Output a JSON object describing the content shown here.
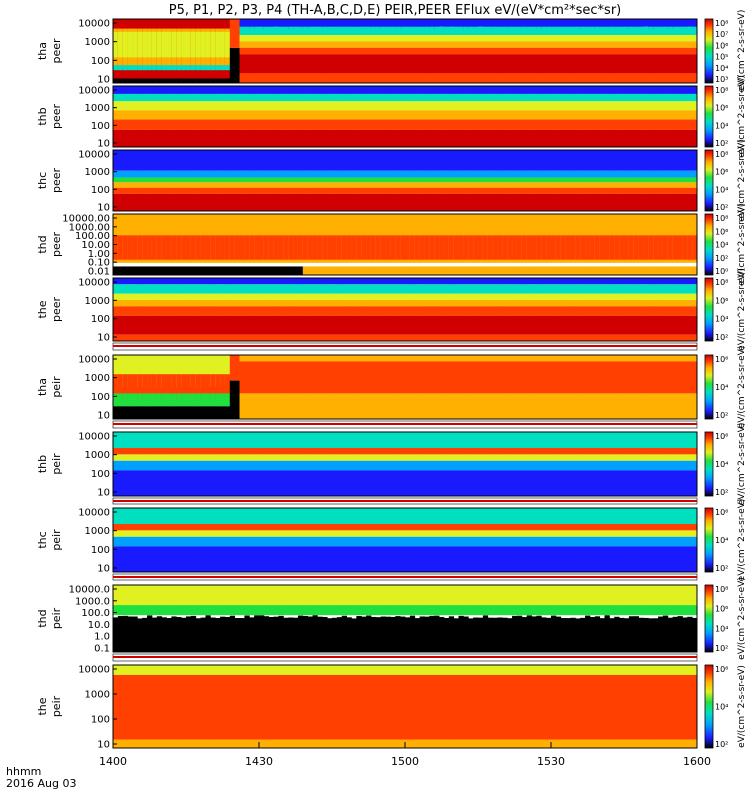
{
  "chart_data": {
    "type": "heatmap",
    "title": "P5, P1, P2, P3, P4 (TH-A,B,C,D,E) PEIR,PEER EFlux eV/(eV*cm²*sec*sr)",
    "x_ticks": [
      "1400",
      "1430",
      "1500",
      "1530",
      "1600"
    ],
    "x_range": [
      "14:00",
      "16:00"
    ],
    "x_footer": [
      "hhmm",
      "2016 Aug 03"
    ],
    "colorbar_label": "eV/(cm^2-s-sr-eV)",
    "colorscale": [
      "#000000",
      "#1a1aff",
      "#00a0ff",
      "#00e0c0",
      "#20e040",
      "#e0f020",
      "#ffb000",
      "#ff4000",
      "#d00000"
    ],
    "panels": [
      {
        "probe": "tha",
        "species": "peer",
        "yticks": [
          "10000",
          "1000",
          "100",
          "10"
        ],
        "colorbar_ticks": [
          "10⁸",
          "10⁷",
          "10⁶",
          "10⁵",
          "10⁴",
          "10³"
        ],
        "profile": "tha_peer"
      },
      {
        "probe": "thb",
        "species": "peer",
        "yticks": [
          "10000",
          "1000",
          "100",
          "10"
        ],
        "colorbar_ticks": [
          "10⁸",
          "10⁶",
          "10⁴",
          "10²"
        ],
        "profile": "thb_peer"
      },
      {
        "probe": "thc",
        "species": "peer",
        "yticks": [
          "10000",
          "1000",
          "100",
          "10"
        ],
        "colorbar_ticks": [
          "10⁸",
          "10⁶",
          "10⁴",
          "10²"
        ],
        "profile": "thc_peer"
      },
      {
        "probe": "thd",
        "species": "peer",
        "yticks": [
          "10000.00",
          "1000.00",
          "100.00",
          "10.00",
          "1.00",
          "0.10",
          "0.01"
        ],
        "colorbar_ticks": [
          "10⁸",
          "10⁶",
          "10⁴",
          "10²",
          "10⁰"
        ],
        "profile": "thd_peer"
      },
      {
        "probe": "the",
        "species": "peer",
        "yticks": [
          "10000",
          "1000",
          "100",
          "10"
        ],
        "colorbar_ticks": [
          "10⁸",
          "10⁶",
          "10⁴",
          "10²"
        ],
        "profile": "the_peer"
      },
      {
        "probe": "tha",
        "species": "peir",
        "yticks": [
          "10000",
          "1000",
          "100",
          "10"
        ],
        "colorbar_ticks": [
          "10⁶",
          "10⁴",
          "10²"
        ],
        "profile": "tha_peir"
      },
      {
        "probe": "thb",
        "species": "peir",
        "yticks": [
          "10000",
          "1000",
          "100",
          "10"
        ],
        "colorbar_ticks": [
          "10⁶",
          "10⁴",
          "10²"
        ],
        "profile": "thb_peir"
      },
      {
        "probe": "thc",
        "species": "peir",
        "yticks": [
          "10000",
          "1000",
          "100",
          "10"
        ],
        "colorbar_ticks": [
          "10⁶",
          "10⁴",
          "10²"
        ],
        "profile": "thc_peir"
      },
      {
        "probe": "thd",
        "species": "peir",
        "yticks": [
          "10000.0",
          "1000.0",
          "100.0",
          "10.0",
          "1.0",
          "0.1"
        ],
        "colorbar_ticks": [
          "10⁸",
          "10⁶",
          "10⁴",
          "10²"
        ],
        "profile": "thd_peir"
      },
      {
        "probe": "the",
        "species": "peir",
        "yticks": [
          "10000",
          "1000",
          "100",
          "10"
        ],
        "colorbar_ticks": [
          "10⁶",
          "10⁴",
          "10²"
        ],
        "profile": "the_peir"
      }
    ]
  }
}
